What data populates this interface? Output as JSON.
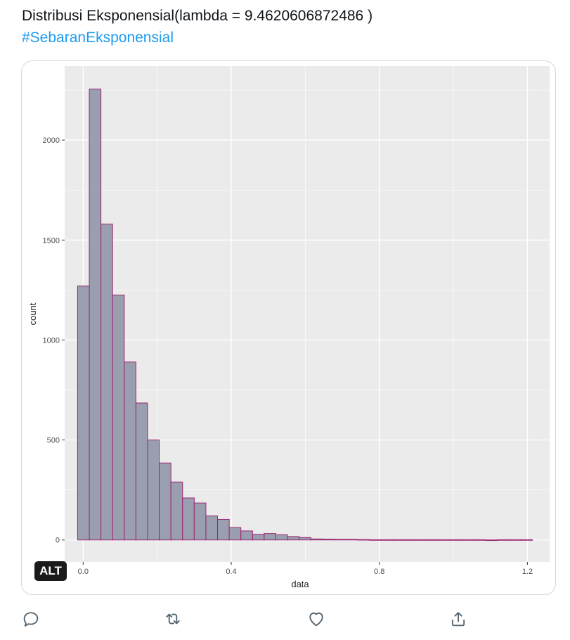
{
  "tweet": {
    "text": "Distribusi Eksponensial(lambda = 9.4620606872486 )",
    "hashtag": "#SebaranEksponensial"
  },
  "media": {
    "alt_badge": "ALT"
  },
  "actions": {
    "reply_icon": "reply-icon",
    "retweet_icon": "retweet-icon",
    "like_icon": "heart-icon",
    "share_icon": "share-icon"
  },
  "chart_data": {
    "type": "bar",
    "xlabel": "data",
    "ylabel": "count",
    "xlim": [
      -0.05,
      1.26
    ],
    "ylim": [
      -110,
      2370
    ],
    "x_ticks": [
      "0.0",
      "0.4",
      "0.8",
      "1.2"
    ],
    "y_ticks": [
      "0",
      "500",
      "1000",
      "1500",
      "2000"
    ],
    "bin_width": 0.0315,
    "bins_start": [
      -0.015,
      0.0165,
      0.048,
      0.0795,
      0.111,
      0.1425,
      0.174,
      0.2055,
      0.237,
      0.2685,
      0.3,
      0.3315,
      0.363,
      0.3945,
      0.426,
      0.4575,
      0.489,
      0.5205,
      0.552,
      0.5835,
      0.615,
      0.6465,
      0.678,
      0.7095,
      0.741,
      0.7725,
      0.804,
      0.8355,
      0.867,
      0.8985,
      0.93,
      0.9615,
      0.993,
      1.0245,
      1.056,
      1.0875,
      1.119,
      1.1505,
      1.182
    ],
    "counts": [
      1270,
      2255,
      1580,
      1225,
      890,
      685,
      500,
      385,
      290,
      210,
      185,
      120,
      103,
      62,
      45,
      28,
      32,
      26,
      17,
      12,
      5,
      4,
      3,
      3,
      2,
      1,
      1,
      1,
      1,
      1,
      1,
      1,
      1,
      1,
      1,
      0,
      1,
      1,
      1
    ],
    "colors": {
      "bar_fill": "#9a9fb0",
      "bar_stroke": "#9b2471",
      "panel_bg": "#ebebeb",
      "grid": "#ffffff",
      "axis_text": "#4d4d4d"
    }
  }
}
